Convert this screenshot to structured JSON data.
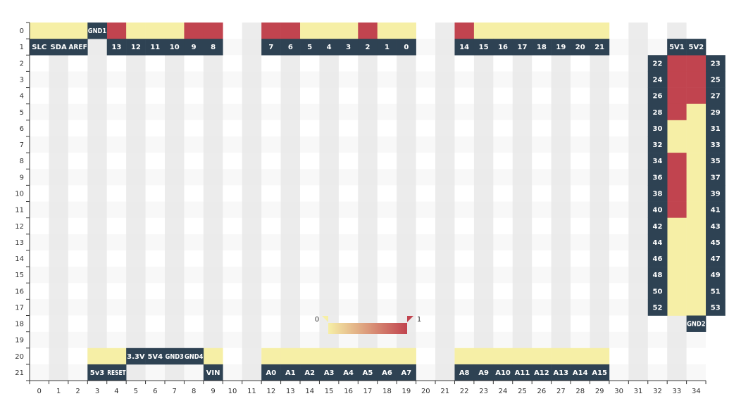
{
  "chart_data": {
    "type": "heatmap",
    "title": "",
    "xlabel": "",
    "ylabel": "",
    "x_categories": [
      "0",
      "1",
      "2",
      "3",
      "4",
      "5",
      "6",
      "7",
      "8",
      "9",
      "10",
      "11",
      "12",
      "13",
      "14",
      "15",
      "16",
      "17",
      "18",
      "19",
      "20",
      "21",
      "22",
      "23",
      "24",
      "25",
      "26",
      "27",
      "28",
      "29",
      "30",
      "31",
      "32",
      "33",
      "34"
    ],
    "y_categories": [
      "0",
      "1",
      "2",
      "3",
      "4",
      "5",
      "6",
      "7",
      "8",
      "9",
      "10",
      "11",
      "12",
      "13",
      "14",
      "15",
      "16",
      "17",
      "18",
      "19",
      "20",
      "21"
    ],
    "y_axis_order": "top-to-bottom",
    "cells": [
      [
        0,
        0,
        0
      ],
      [
        1,
        0,
        0
      ],
      [
        2,
        0,
        0
      ],
      [
        4,
        0,
        1
      ],
      [
        5,
        0,
        0
      ],
      [
        6,
        0,
        0
      ],
      [
        7,
        0,
        0
      ],
      [
        8,
        0,
        1
      ],
      [
        9,
        0,
        1
      ],
      [
        12,
        0,
        1
      ],
      [
        13,
        0,
        1
      ],
      [
        14,
        0,
        0
      ],
      [
        15,
        0,
        0
      ],
      [
        16,
        0,
        0
      ],
      [
        17,
        0,
        1
      ],
      [
        18,
        0,
        0
      ],
      [
        19,
        0,
        0
      ],
      [
        22,
        0,
        1
      ],
      [
        23,
        0,
        0
      ],
      [
        24,
        0,
        0
      ],
      [
        25,
        0,
        0
      ],
      [
        26,
        0,
        0
      ],
      [
        27,
        0,
        0
      ],
      [
        28,
        0,
        0
      ],
      [
        29,
        0,
        0
      ],
      [
        33,
        2,
        1
      ],
      [
        33,
        3,
        1
      ],
      [
        33,
        4,
        1
      ],
      [
        33,
        5,
        1
      ],
      [
        33,
        6,
        0
      ],
      [
        33,
        7,
        0
      ],
      [
        33,
        8,
        1
      ],
      [
        33,
        9,
        1
      ],
      [
        33,
        10,
        1
      ],
      [
        33,
        11,
        1
      ],
      [
        33,
        12,
        0
      ],
      [
        33,
        13,
        0
      ],
      [
        33,
        14,
        0
      ],
      [
        33,
        15,
        0
      ],
      [
        33,
        16,
        0
      ],
      [
        33,
        17,
        0
      ],
      [
        34,
        2,
        1
      ],
      [
        34,
        3,
        1
      ],
      [
        34,
        4,
        1
      ],
      [
        34,
        5,
        0
      ],
      [
        34,
        6,
        0
      ],
      [
        34,
        7,
        0
      ],
      [
        34,
        8,
        0
      ],
      [
        34,
        9,
        0
      ],
      [
        34,
        10,
        0
      ],
      [
        34,
        11,
        0
      ],
      [
        34,
        12,
        0
      ],
      [
        34,
        13,
        0
      ],
      [
        34,
        14,
        0
      ],
      [
        34,
        15,
        0
      ],
      [
        34,
        16,
        0
      ],
      [
        34,
        17,
        0
      ],
      [
        3,
        20,
        0
      ],
      [
        4,
        20,
        0
      ],
      [
        9,
        20,
        0
      ],
      [
        12,
        20,
        0
      ],
      [
        13,
        20,
        0
      ],
      [
        14,
        20,
        0
      ],
      [
        15,
        20,
        0
      ],
      [
        16,
        20,
        0
      ],
      [
        17,
        20,
        0
      ],
      [
        18,
        20,
        0
      ],
      [
        19,
        20,
        0
      ],
      [
        22,
        20,
        0
      ],
      [
        23,
        20,
        0
      ],
      [
        24,
        20,
        0
      ],
      [
        25,
        20,
        0
      ],
      [
        26,
        20,
        0
      ],
      [
        27,
        20,
        0
      ],
      [
        28,
        20,
        0
      ],
      [
        29,
        20,
        0
      ]
    ],
    "pin_labels": [
      {
        "x": 0,
        "y": 1,
        "text": "SLC"
      },
      {
        "x": 1,
        "y": 1,
        "text": "SDA"
      },
      {
        "x": 2,
        "y": 1,
        "text": "AREF"
      },
      {
        "x": 3,
        "y": 0,
        "text": "GND1"
      },
      {
        "x": 4,
        "y": 1,
        "text": "13"
      },
      {
        "x": 5,
        "y": 1,
        "text": "12"
      },
      {
        "x": 6,
        "y": 1,
        "text": "11"
      },
      {
        "x": 7,
        "y": 1,
        "text": "10"
      },
      {
        "x": 8,
        "y": 1,
        "text": "9"
      },
      {
        "x": 9,
        "y": 1,
        "text": "8"
      },
      {
        "x": 12,
        "y": 1,
        "text": "7"
      },
      {
        "x": 13,
        "y": 1,
        "text": "6"
      },
      {
        "x": 14,
        "y": 1,
        "text": "5"
      },
      {
        "x": 15,
        "y": 1,
        "text": "4"
      },
      {
        "x": 16,
        "y": 1,
        "text": "3"
      },
      {
        "x": 17,
        "y": 1,
        "text": "2"
      },
      {
        "x": 18,
        "y": 1,
        "text": "1"
      },
      {
        "x": 19,
        "y": 1,
        "text": "0"
      },
      {
        "x": 22,
        "y": 1,
        "text": "14"
      },
      {
        "x": 23,
        "y": 1,
        "text": "15"
      },
      {
        "x": 24,
        "y": 1,
        "text": "16"
      },
      {
        "x": 25,
        "y": 1,
        "text": "17"
      },
      {
        "x": 26,
        "y": 1,
        "text": "18"
      },
      {
        "x": 27,
        "y": 1,
        "text": "19"
      },
      {
        "x": 28,
        "y": 1,
        "text": "20"
      },
      {
        "x": 29,
        "y": 1,
        "text": "21"
      },
      {
        "x": 33,
        "y": 1,
        "text": "5V1"
      },
      {
        "x": 34,
        "y": 1,
        "text": "5V2"
      },
      {
        "x": 32,
        "y": 2,
        "text": "22"
      },
      {
        "x": 32,
        "y": 3,
        "text": "24"
      },
      {
        "x": 32,
        "y": 4,
        "text": "26"
      },
      {
        "x": 32,
        "y": 5,
        "text": "28"
      },
      {
        "x": 32,
        "y": 6,
        "text": "30"
      },
      {
        "x": 32,
        "y": 7,
        "text": "32"
      },
      {
        "x": 32,
        "y": 8,
        "text": "34"
      },
      {
        "x": 32,
        "y": 9,
        "text": "36"
      },
      {
        "x": 32,
        "y": 10,
        "text": "38"
      },
      {
        "x": 32,
        "y": 11,
        "text": "40"
      },
      {
        "x": 32,
        "y": 12,
        "text": "42"
      },
      {
        "x": 32,
        "y": 13,
        "text": "44"
      },
      {
        "x": 32,
        "y": 14,
        "text": "46"
      },
      {
        "x": 32,
        "y": 15,
        "text": "48"
      },
      {
        "x": 32,
        "y": 16,
        "text": "50"
      },
      {
        "x": 32,
        "y": 17,
        "text": "52"
      },
      {
        "x": 35,
        "y": 2,
        "text": "23"
      },
      {
        "x": 35,
        "y": 3,
        "text": "25"
      },
      {
        "x": 35,
        "y": 4,
        "text": "27"
      },
      {
        "x": 35,
        "y": 5,
        "text": "29"
      },
      {
        "x": 35,
        "y": 6,
        "text": "31"
      },
      {
        "x": 35,
        "y": 7,
        "text": "33"
      },
      {
        "x": 35,
        "y": 8,
        "text": "35"
      },
      {
        "x": 35,
        "y": 9,
        "text": "37"
      },
      {
        "x": 35,
        "y": 10,
        "text": "39"
      },
      {
        "x": 35,
        "y": 11,
        "text": "41"
      },
      {
        "x": 35,
        "y": 12,
        "text": "43"
      },
      {
        "x": 35,
        "y": 13,
        "text": "45"
      },
      {
        "x": 35,
        "y": 14,
        "text": "47"
      },
      {
        "x": 35,
        "y": 15,
        "text": "49"
      },
      {
        "x": 35,
        "y": 16,
        "text": "51"
      },
      {
        "x": 35,
        "y": 17,
        "text": "53"
      },
      {
        "x": 34,
        "y": 18,
        "text": "GND2"
      },
      {
        "x": 5,
        "y": 20,
        "text": "3.3V"
      },
      {
        "x": 6,
        "y": 20,
        "text": "5V4"
      },
      {
        "x": 7,
        "y": 20,
        "text": "GND3"
      },
      {
        "x": 8,
        "y": 20,
        "text": "GND4"
      },
      {
        "x": 3,
        "y": 21,
        "text": "5v3"
      },
      {
        "x": 4,
        "y": 21,
        "text": "RESET"
      },
      {
        "x": 9,
        "y": 21,
        "text": "VIN"
      },
      {
        "x": 12,
        "y": 21,
        "text": "A0"
      },
      {
        "x": 13,
        "y": 21,
        "text": "A1"
      },
      {
        "x": 14,
        "y": 21,
        "text": "A2"
      },
      {
        "x": 15,
        "y": 21,
        "text": "A3"
      },
      {
        "x": 16,
        "y": 21,
        "text": "A4"
      },
      {
        "x": 17,
        "y": 21,
        "text": "A5"
      },
      {
        "x": 18,
        "y": 21,
        "text": "A6"
      },
      {
        "x": 19,
        "y": 21,
        "text": "A7"
      },
      {
        "x": 22,
        "y": 21,
        "text": "A8"
      },
      {
        "x": 23,
        "y": 21,
        "text": "A9"
      },
      {
        "x": 24,
        "y": 21,
        "text": "A10"
      },
      {
        "x": 25,
        "y": 21,
        "text": "A11"
      },
      {
        "x": 26,
        "y": 21,
        "text": "A12"
      },
      {
        "x": 27,
        "y": 21,
        "text": "A13"
      },
      {
        "x": 28,
        "y": 21,
        "text": "A14"
      },
      {
        "x": 29,
        "y": 21,
        "text": "A15"
      }
    ],
    "visual_map": {
      "min": 0,
      "max": 1,
      "min_label": "0",
      "max_label": "1",
      "orientation": "horizontal",
      "placement": "bottom-center"
    },
    "colors": {
      "low": "#f6efa6",
      "high": "#c1444f",
      "label_box": "#2e4253",
      "stripe_a": "#ffffff",
      "stripe_b": "#ececec",
      "row_band": "rgba(235,235,235,0.35)",
      "axis": "#333333"
    }
  }
}
